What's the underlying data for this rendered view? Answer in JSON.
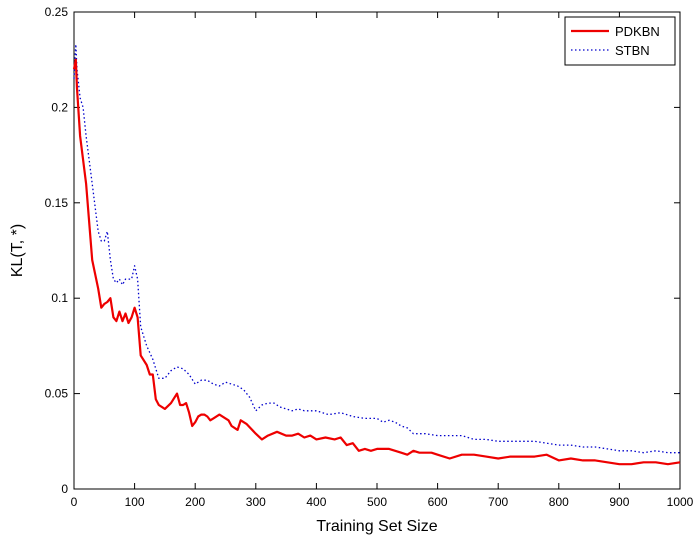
{
  "chart_data": {
    "type": "line",
    "title": "",
    "xlabel": "Training Set Size",
    "ylabel": "KL(T, *)",
    "xlim": [
      0,
      1000
    ],
    "ylim": [
      0,
      0.25
    ],
    "xticks": [
      0,
      100,
      200,
      300,
      400,
      500,
      600,
      700,
      800,
      900,
      1000
    ],
    "yticks": [
      0,
      0.05,
      0.1,
      0.15,
      0.2,
      0.25
    ],
    "xtick_labels": [
      "0",
      "100",
      "200",
      "300",
      "400",
      "500",
      "600",
      "700",
      "800",
      "900",
      "1000"
    ],
    "ytick_labels": [
      "0",
      "0.05",
      "0.1",
      "0.15",
      "0.2",
      "0.25"
    ],
    "grid": false,
    "legend_position": "top-right",
    "series": [
      {
        "name": "PDKBN",
        "color": "#ee0000",
        "style": "solid",
        "points": [
          [
            0,
            0.22
          ],
          [
            3,
            0.225
          ],
          [
            5,
            0.21
          ],
          [
            10,
            0.185
          ],
          [
            20,
            0.16
          ],
          [
            30,
            0.12
          ],
          [
            40,
            0.105
          ],
          [
            45,
            0.095
          ],
          [
            50,
            0.097
          ],
          [
            55,
            0.098
          ],
          [
            60,
            0.1
          ],
          [
            65,
            0.09
          ],
          [
            70,
            0.088
          ],
          [
            75,
            0.093
          ],
          [
            80,
            0.088
          ],
          [
            85,
            0.092
          ],
          [
            90,
            0.087
          ],
          [
            95,
            0.09
          ],
          [
            100,
            0.095
          ],
          [
            105,
            0.09
          ],
          [
            110,
            0.07
          ],
          [
            120,
            0.065
          ],
          [
            125,
            0.06
          ],
          [
            130,
            0.06
          ],
          [
            135,
            0.047
          ],
          [
            140,
            0.044
          ],
          [
            150,
            0.042
          ],
          [
            160,
            0.045
          ],
          [
            170,
            0.05
          ],
          [
            175,
            0.044
          ],
          [
            180,
            0.044
          ],
          [
            185,
            0.045
          ],
          [
            190,
            0.04
          ],
          [
            195,
            0.033
          ],
          [
            200,
            0.035
          ],
          [
            205,
            0.038
          ],
          [
            210,
            0.039
          ],
          [
            215,
            0.039
          ],
          [
            220,
            0.038
          ],
          [
            225,
            0.036
          ],
          [
            230,
            0.037
          ],
          [
            240,
            0.039
          ],
          [
            250,
            0.037
          ],
          [
            255,
            0.036
          ],
          [
            260,
            0.033
          ],
          [
            270,
            0.031
          ],
          [
            275,
            0.036
          ],
          [
            285,
            0.034
          ],
          [
            300,
            0.029
          ],
          [
            310,
            0.026
          ],
          [
            320,
            0.028
          ],
          [
            335,
            0.03
          ],
          [
            350,
            0.028
          ],
          [
            360,
            0.028
          ],
          [
            370,
            0.029
          ],
          [
            380,
            0.027
          ],
          [
            390,
            0.028
          ],
          [
            400,
            0.026
          ],
          [
            415,
            0.027
          ],
          [
            430,
            0.026
          ],
          [
            440,
            0.027
          ],
          [
            450,
            0.023
          ],
          [
            460,
            0.024
          ],
          [
            470,
            0.02
          ],
          [
            480,
            0.021
          ],
          [
            490,
            0.02
          ],
          [
            500,
            0.021
          ],
          [
            520,
            0.021
          ],
          [
            540,
            0.019
          ],
          [
            550,
            0.018
          ],
          [
            560,
            0.02
          ],
          [
            570,
            0.019
          ],
          [
            590,
            0.019
          ],
          [
            600,
            0.018
          ],
          [
            620,
            0.016
          ],
          [
            640,
            0.018
          ],
          [
            660,
            0.018
          ],
          [
            680,
            0.017
          ],
          [
            700,
            0.016
          ],
          [
            720,
            0.017
          ],
          [
            740,
            0.017
          ],
          [
            760,
            0.017
          ],
          [
            780,
            0.018
          ],
          [
            800,
            0.015
          ],
          [
            820,
            0.016
          ],
          [
            840,
            0.015
          ],
          [
            860,
            0.015
          ],
          [
            880,
            0.014
          ],
          [
            900,
            0.013
          ],
          [
            920,
            0.013
          ],
          [
            940,
            0.014
          ],
          [
            960,
            0.014
          ],
          [
            980,
            0.013
          ],
          [
            1000,
            0.014
          ]
        ]
      },
      {
        "name": "STBN",
        "color": "#0000cc",
        "style": "dotted",
        "points": [
          [
            0,
            0.215
          ],
          [
            3,
            0.233
          ],
          [
            5,
            0.22
          ],
          [
            10,
            0.205
          ],
          [
            15,
            0.2
          ],
          [
            20,
            0.185
          ],
          [
            30,
            0.16
          ],
          [
            40,
            0.135
          ],
          [
            45,
            0.13
          ],
          [
            50,
            0.13
          ],
          [
            55,
            0.135
          ],
          [
            60,
            0.12
          ],
          [
            65,
            0.11
          ],
          [
            70,
            0.108
          ],
          [
            75,
            0.11
          ],
          [
            80,
            0.107
          ],
          [
            85,
            0.11
          ],
          [
            90,
            0.11
          ],
          [
            95,
            0.11
          ],
          [
            100,
            0.117
          ],
          [
            105,
            0.11
          ],
          [
            110,
            0.085
          ],
          [
            115,
            0.08
          ],
          [
            120,
            0.075
          ],
          [
            130,
            0.068
          ],
          [
            140,
            0.058
          ],
          [
            150,
            0.058
          ],
          [
            160,
            0.062
          ],
          [
            170,
            0.064
          ],
          [
            180,
            0.063
          ],
          [
            190,
            0.06
          ],
          [
            200,
            0.055
          ],
          [
            210,
            0.057
          ],
          [
            220,
            0.057
          ],
          [
            230,
            0.055
          ],
          [
            240,
            0.054
          ],
          [
            250,
            0.056
          ],
          [
            260,
            0.055
          ],
          [
            270,
            0.054
          ],
          [
            280,
            0.052
          ],
          [
            290,
            0.048
          ],
          [
            300,
            0.041
          ],
          [
            310,
            0.044
          ],
          [
            320,
            0.045
          ],
          [
            330,
            0.045
          ],
          [
            340,
            0.043
          ],
          [
            350,
            0.042
          ],
          [
            360,
            0.041
          ],
          [
            370,
            0.042
          ],
          [
            380,
            0.041
          ],
          [
            390,
            0.041
          ],
          [
            400,
            0.041
          ],
          [
            420,
            0.039
          ],
          [
            440,
            0.04
          ],
          [
            460,
            0.038
          ],
          [
            480,
            0.037
          ],
          [
            500,
            0.037
          ],
          [
            510,
            0.035
          ],
          [
            520,
            0.036
          ],
          [
            530,
            0.035
          ],
          [
            540,
            0.033
          ],
          [
            550,
            0.032
          ],
          [
            560,
            0.029
          ],
          [
            580,
            0.029
          ],
          [
            600,
            0.028
          ],
          [
            620,
            0.028
          ],
          [
            640,
            0.028
          ],
          [
            660,
            0.026
          ],
          [
            680,
            0.026
          ],
          [
            700,
            0.025
          ],
          [
            720,
            0.025
          ],
          [
            740,
            0.025
          ],
          [
            760,
            0.025
          ],
          [
            780,
            0.024
          ],
          [
            800,
            0.023
          ],
          [
            820,
            0.023
          ],
          [
            840,
            0.022
          ],
          [
            860,
            0.022
          ],
          [
            880,
            0.021
          ],
          [
            900,
            0.02
          ],
          [
            920,
            0.02
          ],
          [
            940,
            0.019
          ],
          [
            960,
            0.02
          ],
          [
            980,
            0.019
          ],
          [
            1000,
            0.019
          ]
        ]
      }
    ]
  }
}
